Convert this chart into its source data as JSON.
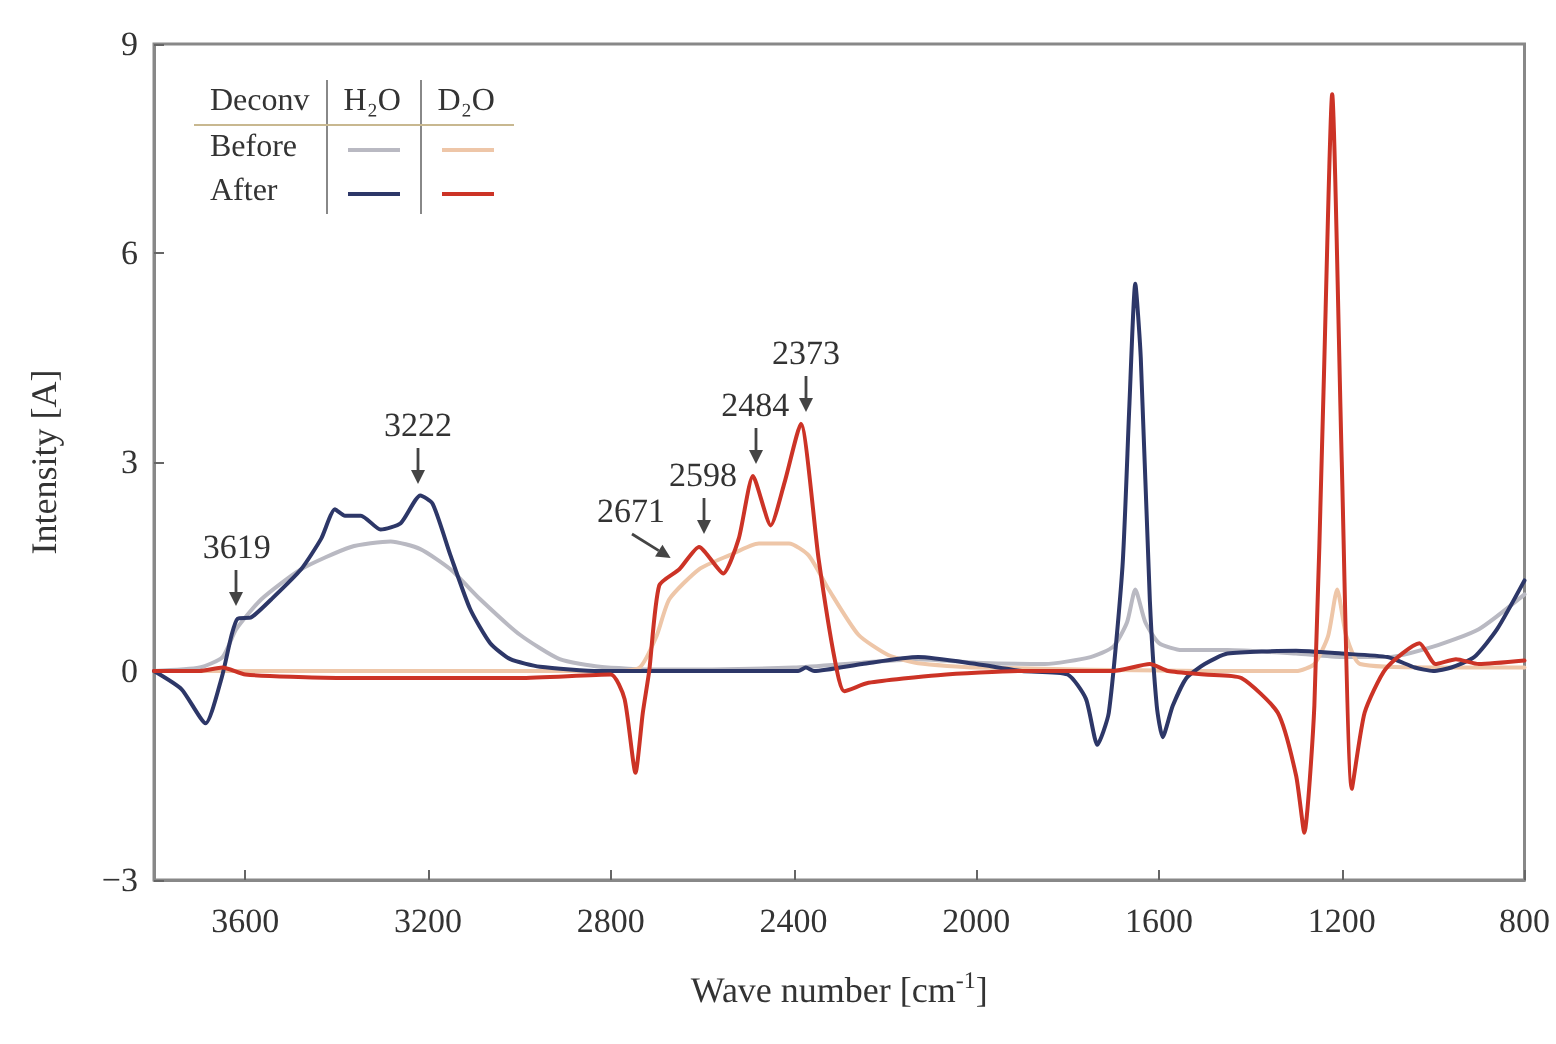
{
  "chart_data": {
    "type": "line",
    "xlabel": "Wave number [cm$^{-1}$]",
    "ylabel": "Intensity [A]",
    "xlim": [
      3800,
      800
    ],
    "xticks": [
      3600,
      3200,
      2800,
      2400,
      2000,
      1600,
      1200,
      800
    ],
    "ylim": [
      -3,
      9
    ],
    "yticks": [
      {
        "value": -3,
        "label": "−3"
      },
      0,
      3,
      6,
      9
    ],
    "grid": false,
    "legend_title": "Deconv",
    "marker": "none",
    "line_style": "solid",
    "series": [
      {
        "color": "#b9b9c2",
        "x": [
          3800,
          3700,
          3650,
          3620,
          3565,
          3478,
          3369,
          3282,
          3217,
          3151,
          3086,
          2999,
          2912,
          2824,
          2700,
          2400,
          2250,
          2127,
          2000,
          1850,
          1750,
          1700,
          1670,
          1652,
          1630,
          1600,
          1550,
          1450,
          1300,
          1200,
          1100,
          1000,
          900,
          800
        ],
        "values": [
          0,
          0.05,
          0.2,
          0.6,
          1.03,
          1.46,
          1.78,
          1.86,
          1.75,
          1.46,
          1.03,
          0.52,
          0.17,
          0.06,
          0.02,
          0.05,
          0.12,
          0.17,
          0.12,
          0.1,
          0.2,
          0.35,
          0.7,
          1.17,
          0.7,
          0.4,
          0.3,
          0.3,
          0.25,
          0.2,
          0.2,
          0.35,
          0.6,
          1.1
        ]
      },
      {
        "color": "#eec6a8",
        "x": [
          3800,
          3000,
          2800,
          2737,
          2700,
          2672,
          2607,
          2541,
          2476,
          2410,
          2367,
          2323,
          2258,
          2193,
          2127,
          2000,
          1500,
          1300,
          1260,
          1230,
          1210,
          1190,
          1160,
          1000,
          800
        ],
        "values": [
          0,
          0,
          0,
          0.05,
          0.5,
          1.03,
          1.46,
          1.66,
          1.83,
          1.83,
          1.66,
          1.17,
          0.52,
          0.23,
          0.11,
          0.05,
          0,
          0,
          0.1,
          0.5,
          1.17,
          0.5,
          0.1,
          0.05,
          0.05
        ]
      },
      {
        "color": "#2d3768",
        "x": [
          3800,
          3740,
          3687,
          3652,
          3630,
          3617,
          3587,
          3543,
          3478,
          3434,
          3404,
          3382,
          3347,
          3304,
          3260,
          3217,
          3190,
          3151,
          3108,
          3064,
          3020,
          2955,
          2824,
          2500,
          2390,
          2373,
          2355,
          2250,
          2127,
          2000,
          1900,
          1800,
          1760,
          1735,
          1710,
          1680,
          1665,
          1652,
          1640,
          1620,
          1605,
          1592,
          1570,
          1540,
          1500,
          1450,
          1300,
          1200,
          1100,
          1040,
          1000,
          960,
          910,
          860,
          800
        ],
        "values": [
          0,
          -0.26,
          -0.75,
          -0.1,
          0.52,
          0.75,
          0.77,
          1.03,
          1.46,
          1.9,
          2.32,
          2.23,
          2.23,
          2.03,
          2.12,
          2.52,
          2.4,
          1.66,
          0.89,
          0.4,
          0.17,
          0.06,
          0,
          0,
          0,
          0.05,
          0,
          0.1,
          0.2,
          0.1,
          0,
          -0.05,
          -0.4,
          -1.06,
          -0.6,
          1.5,
          3.8,
          5.56,
          4.5,
          1.0,
          -0.5,
          -0.95,
          -0.5,
          -0.1,
          0.1,
          0.25,
          0.29,
          0.25,
          0.2,
          0.05,
          0,
          0.05,
          0.2,
          0.6,
          1.3
        ]
      },
      {
        "color": "#cc3326",
        "x": [
          3800,
          3700,
          3650,
          3600,
          3400,
          3000,
          2800,
          2770,
          2746,
          2730,
          2716,
          2694,
          2650,
          2607,
          2554,
          2520,
          2489,
          2450,
          2420,
          2384,
          2345,
          2310,
          2289,
          2236,
          2084,
          1900,
          1700,
          1620,
          1580,
          1500,
          1420,
          1340,
          1300,
          1282,
          1260,
          1240,
          1221,
          1200,
          1178,
          1150,
          1104,
          1030,
          995,
          950,
          900,
          800
        ],
        "values": [
          0,
          0,
          0.05,
          -0.05,
          -0.1,
          -0.1,
          -0.05,
          -0.4,
          -1.46,
          -0.6,
          0,
          1.23,
          1.46,
          1.78,
          1.4,
          1.9,
          2.8,
          2.09,
          2.7,
          3.55,
          1.6,
          0.17,
          -0.29,
          -0.17,
          -0.06,
          0,
          0,
          0.1,
          0,
          -0.05,
          -0.1,
          -0.6,
          -1.5,
          -2.32,
          -0.5,
          4,
          8.28,
          3,
          -1.69,
          -0.6,
          0.03,
          0.4,
          0.1,
          0.17,
          0.1,
          0.15
        ]
      }
    ],
    "annotations": [
      "H₂O",
      "D₂O",
      "Before",
      "After",
      {
        "text": "3619",
        "x": 3619,
        "y": 0.75
      },
      {
        "text": "3222",
        "x": 3222,
        "y": 2.52
      },
      {
        "text": "2671",
        "x": 2671,
        "y": 1.46
      },
      {
        "text": "2598",
        "x": 2598,
        "y": 1.78
      },
      {
        "text": "2484",
        "x": 2484,
        "y": 2.8
      },
      {
        "text": "2373",
        "x": 2373,
        "y": 3.55
      }
    ]
  }
}
